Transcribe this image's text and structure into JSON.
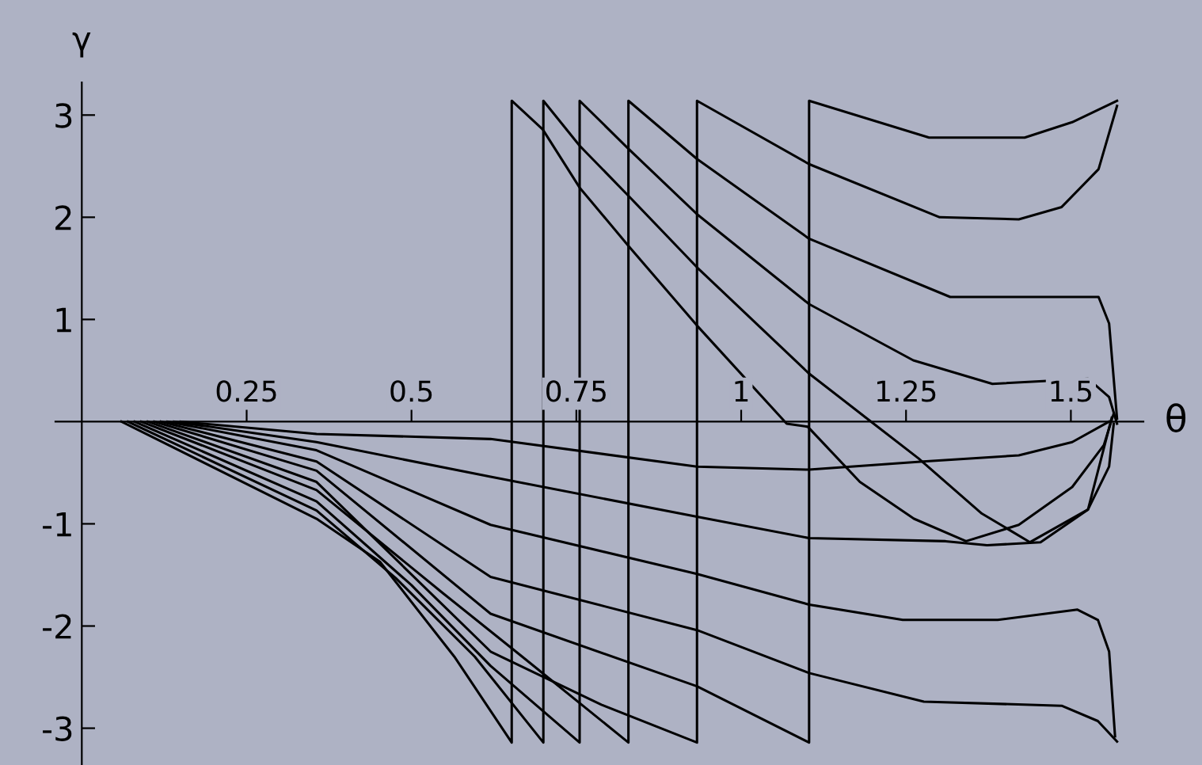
{
  "chart_data": {
    "type": "line",
    "xlabel": "θ",
    "ylabel": "γ",
    "xlim": [
      -0.04,
      1.61
    ],
    "ylim": [
      -3.36,
      3.32
    ],
    "xticks": [
      0.25,
      0.5,
      0.75,
      1,
      1.25,
      1.5
    ],
    "yticks": [
      -3,
      -2,
      -1,
      1,
      2,
      3
    ],
    "grid": false,
    "legend": false,
    "marker": "none",
    "line_style": "solid",
    "series": [
      {
        "color": "#000000",
        "x": [
          0.06,
          0.356,
          0.452,
          0.565,
          0.652,
          0.652,
          0.699,
          0.755,
          0.829,
          0.933,
          1.069,
          1.101,
          1.18,
          1.262,
          1.341,
          1.421,
          1.502,
          1.55,
          1.565
        ],
        "values": [
          0,
          -0.95,
          -1.37,
          -2.3,
          -3.14,
          3.14,
          2.86,
          2.29,
          1.72,
          0.94,
          -0.02,
          -0.05,
          -0.59,
          -0.95,
          -1.17,
          -1.01,
          -0.64,
          -0.23,
          0.08
        ]
      },
      {
        "color": "#000000",
        "x": [
          0.07,
          0.356,
          0.476,
          0.596,
          0.7,
          0.7,
          0.755,
          0.829,
          0.933,
          1.103,
          1.197,
          1.269,
          1.365,
          1.438,
          1.526,
          1.558,
          1.565
        ],
        "values": [
          0,
          -0.87,
          -1.53,
          -2.3,
          -3.14,
          3.14,
          2.7,
          2.21,
          1.51,
          0.47,
          0.0,
          -0.36,
          -0.9,
          -1.18,
          -0.86,
          -0.44,
          -0.02
        ]
      },
      {
        "color": "#000000",
        "x": [
          0.08,
          0.356,
          0.5,
          0.62,
          0.755,
          0.755,
          0.829,
          0.933,
          1.103,
          1.261,
          1.381,
          1.526,
          1.558,
          1.57
        ],
        "values": [
          0,
          -0.78,
          -1.6,
          -2.39,
          -3.14,
          3.14,
          2.67,
          2.03,
          1.15,
          0.6,
          0.37,
          0.42,
          0.24,
          -0.02
        ]
      },
      {
        "color": "#000000",
        "x": [
          0.09,
          0.356,
          0.548,
          0.668,
          0.829,
          0.829,
          0.933,
          1.103,
          1.317,
          1.462,
          1.542,
          1.558,
          1.57
        ],
        "values": [
          0,
          -0.67,
          -1.68,
          -2.3,
          -3.14,
          3.14,
          2.57,
          1.79,
          1.22,
          1.22,
          1.22,
          0.96,
          0.03
        ]
      },
      {
        "color": "#000000",
        "x": [
          0.1,
          0.356,
          0.62,
          0.788,
          0.933,
          0.933,
          1.103,
          1.301,
          1.421,
          1.486,
          1.542,
          1.57
        ],
        "values": [
          0,
          -0.59,
          -2.25,
          -2.77,
          -3.14,
          3.14,
          2.52,
          2.0,
          1.98,
          2.1,
          2.47,
          3.09
        ]
      },
      {
        "color": "#000000",
        "x": [
          0.11,
          0.356,
          0.62,
          0.933,
          1.103,
          1.103,
          1.285,
          1.43,
          1.502,
          1.57
        ],
        "values": [
          0,
          -0.48,
          -1.88,
          -2.59,
          -3.14,
          3.14,
          2.78,
          2.78,
          2.93,
          3.14
        ]
      },
      {
        "color": "#000000",
        "x": [
          0.12,
          0.356,
          0.62,
          0.933,
          1.103,
          1.277,
          1.486,
          1.541,
          1.57
        ],
        "values": [
          0,
          -0.39,
          -1.52,
          -2.04,
          -2.46,
          -2.74,
          -2.78,
          -2.93,
          -3.13
        ]
      },
      {
        "color": "#000000",
        "x": [
          0.13,
          0.356,
          0.62,
          0.933,
          1.103,
          1.245,
          1.389,
          1.51,
          1.541,
          1.558,
          1.567
        ],
        "values": [
          0,
          -0.28,
          -1.01,
          -1.49,
          -1.79,
          -1.94,
          -1.94,
          -1.84,
          -1.94,
          -2.25,
          -3.08
        ]
      },
      {
        "color": "#000000",
        "x": [
          0.14,
          0.356,
          0.62,
          0.933,
          1.103,
          1.31,
          1.373,
          1.454,
          1.526,
          1.562
        ],
        "values": [
          0,
          -0.2,
          -0.54,
          -0.93,
          -1.14,
          -1.17,
          -1.21,
          -1.18,
          -0.86,
          0.04
        ]
      },
      {
        "color": "#000000",
        "x": [
          0.15,
          0.356,
          0.62,
          0.933,
          1.103,
          1.276,
          1.421,
          1.502,
          1.558
        ],
        "values": [
          0,
          -0.12,
          -0.17,
          -0.44,
          -0.47,
          -0.39,
          -0.33,
          -0.2,
          0.0
        ]
      }
    ]
  }
}
